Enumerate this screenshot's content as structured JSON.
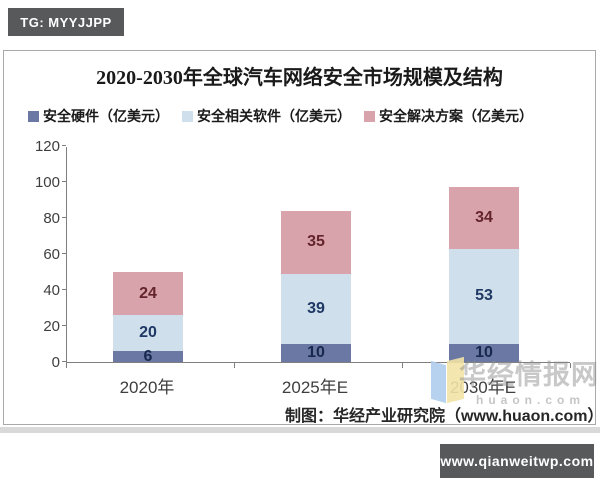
{
  "badges": {
    "top_left": "TG: MYYJJPP",
    "bottom_right": "www.qianweitwp.com"
  },
  "chart": {
    "title": "2020-2030年全球汽车网络安全市场规模及结构",
    "source_note": "制图：华经产业研究院（www.huaon.com）",
    "watermark": {
      "name": "华经情报网",
      "domain": "huaon.com"
    }
  },
  "chart_data": {
    "type": "bar",
    "stacked": true,
    "title": "2020-2030年全球汽车网络安全市场规模及结构",
    "categories": [
      "2020年",
      "2025年E",
      "2030年E"
    ],
    "series": [
      {
        "name": "安全硬件（亿美元）",
        "color": "#6a78a3",
        "label_color": "#16294d",
        "values": [
          6,
          10,
          10
        ]
      },
      {
        "name": "安全相关软件（亿美元）",
        "color": "#cfe0ec",
        "label_color": "#1f3864",
        "values": [
          20,
          39,
          53
        ]
      },
      {
        "name": "安全解决方案（亿美元）",
        "color": "#d9a3ab",
        "label_color": "#63242c",
        "values": [
          24,
          35,
          34
        ]
      }
    ],
    "totals": [
      50,
      84,
      97
    ],
    "xlabel": "",
    "ylabel": "",
    "ylim": [
      0,
      120
    ],
    "yticks": [
      0,
      20,
      40,
      60,
      80,
      100,
      120
    ],
    "grid": false,
    "legend_position": "top"
  },
  "colors": {
    "badge_bg": "#58595b",
    "axis": "#7f7f7f",
    "card_border": "#a9a9a9",
    "shadow": "#d9d9d9"
  }
}
